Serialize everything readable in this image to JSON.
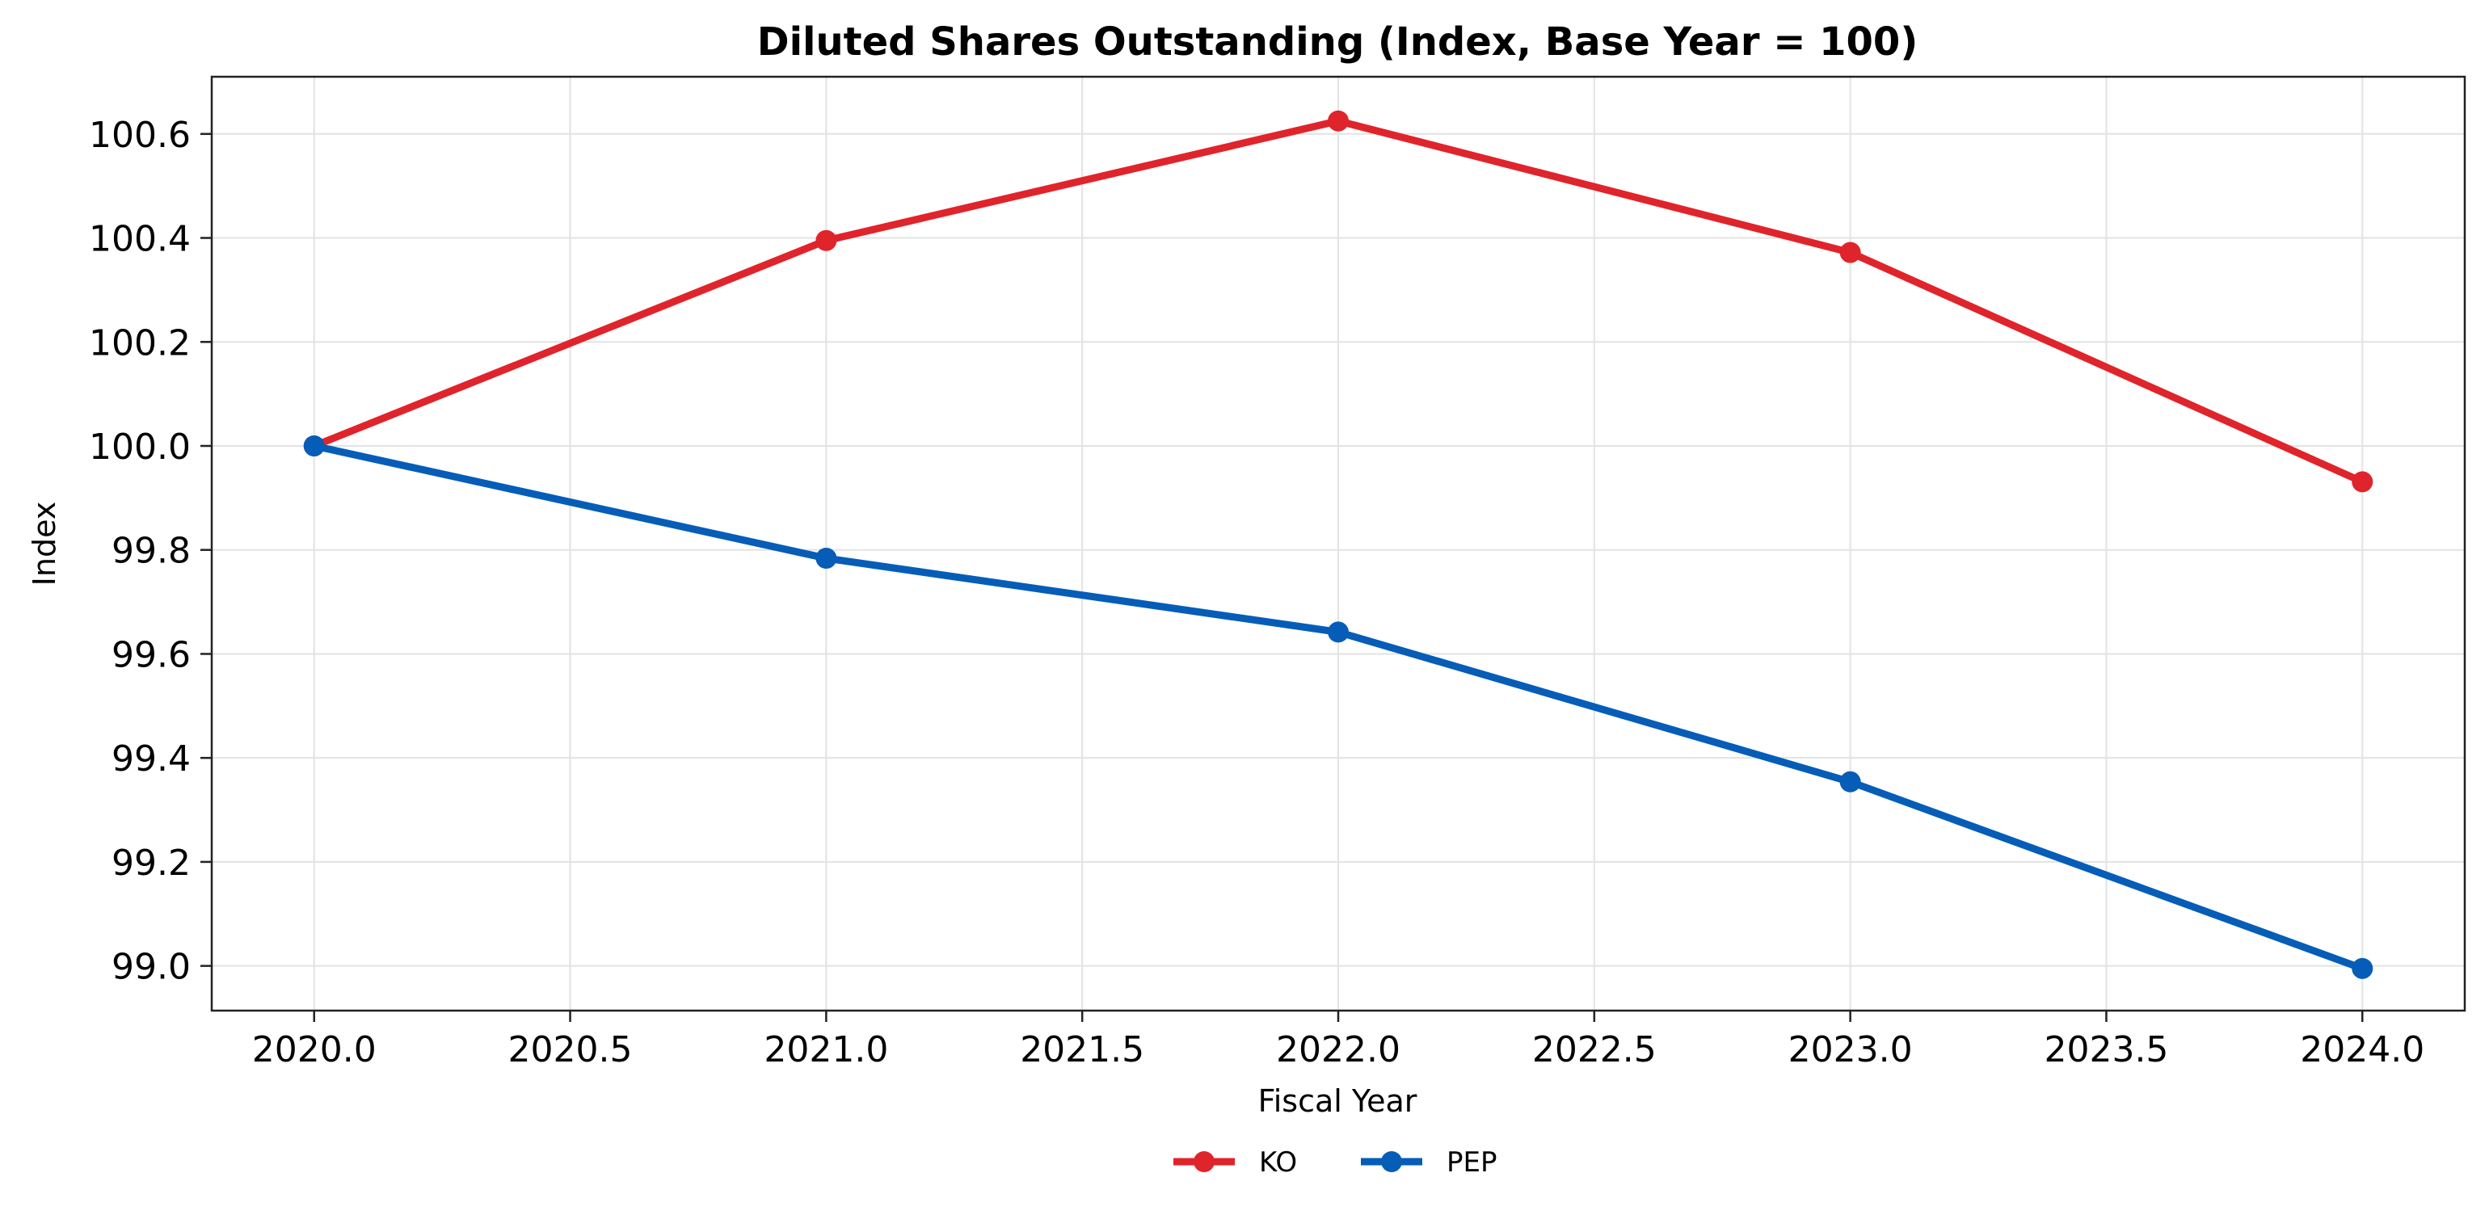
{
  "chart_data": {
    "type": "line",
    "title": "Diluted Shares Outstanding (Index, Base Year = 100)",
    "xlabel": "Fiscal Year",
    "ylabel": "Index",
    "x": [
      2020,
      2021,
      2022,
      2023,
      2024
    ],
    "xlim": [
      2019.8,
      2024.2
    ],
    "ylim": [
      98.914,
      100.71
    ],
    "xticks": [
      2020.0,
      2020.5,
      2021.0,
      2021.5,
      2022.0,
      2022.5,
      2023.0,
      2023.5,
      2024.0
    ],
    "xtick_labels": [
      "2020.0",
      "2020.5",
      "2021.0",
      "2021.5",
      "2022.0",
      "2022.5",
      "2023.0",
      "2023.5",
      "2024.0"
    ],
    "yticks": [
      99.0,
      99.2,
      99.4,
      99.6,
      99.8,
      100.0,
      100.2,
      100.4,
      100.6
    ],
    "ytick_labels": [
      "99.0",
      "99.2",
      "99.4",
      "99.6",
      "99.8",
      "100.0",
      "100.2",
      "100.4",
      "100.6"
    ],
    "grid": true,
    "legend_position": "bottom-center",
    "series": [
      {
        "name": "KO",
        "color": "#e0242b",
        "values": [
          100.0,
          100.395,
          100.625,
          100.372,
          99.931
        ]
      },
      {
        "name": "PEP",
        "color": "#065db7",
        "values": [
          100.0,
          99.784,
          99.642,
          99.354,
          98.995
        ]
      }
    ]
  }
}
